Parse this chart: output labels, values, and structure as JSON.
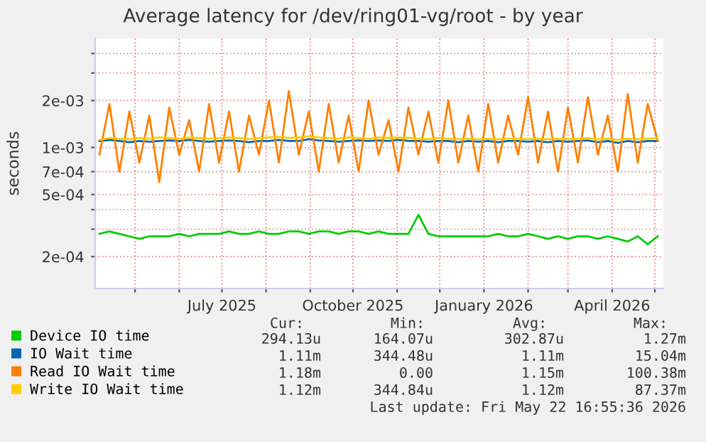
{
  "chart_data": {
    "type": "line",
    "title": "Average latency for /dev/ring01-vg/root - by year",
    "ylabel": "seconds",
    "log": "y",
    "grid": true,
    "legend": "bottom left",
    "x": [
      "2025-04-06",
      "2025-04-13",
      "2025-04-20",
      "2025-04-27",
      "2025-05-04",
      "2025-05-11",
      "2025-05-18",
      "2025-05-25",
      "2025-06-01",
      "2025-06-08",
      "2025-06-15",
      "2025-06-22",
      "2025-06-29",
      "2025-07-06",
      "2025-07-13",
      "2025-07-20",
      "2025-07-27",
      "2025-08-03",
      "2025-08-10",
      "2025-08-17",
      "2025-08-24",
      "2025-08-31",
      "2025-09-07",
      "2025-09-14",
      "2025-09-21",
      "2025-09-28",
      "2025-10-05",
      "2025-10-12",
      "2025-10-19",
      "2025-10-26",
      "2025-11-02",
      "2025-11-09",
      "2025-11-16",
      "2025-11-23",
      "2025-11-30",
      "2025-12-07",
      "2025-12-14",
      "2025-12-21",
      "2025-12-28",
      "2026-01-04",
      "2026-01-11",
      "2026-01-18",
      "2026-01-25",
      "2026-02-01",
      "2026-02-08",
      "2026-02-15",
      "2026-02-22",
      "2026-03-01",
      "2026-03-08",
      "2026-03-15",
      "2026-03-22",
      "2026-03-29",
      "2026-04-05",
      "2026-04-12",
      "2026-04-19",
      "2026-04-26",
      "2026-05-03"
    ],
    "series": [
      {
        "name": "Device IO time",
        "color": "#00cc00",
        "values": [
          0.00028,
          0.00029,
          0.00028,
          0.00027,
          0.00026,
          0.00027,
          0.00027,
          0.00027,
          0.00028,
          0.00027,
          0.00028,
          0.00028,
          0.00028,
          0.00029,
          0.00028,
          0.00028,
          0.00029,
          0.00028,
          0.00028,
          0.00029,
          0.00029,
          0.00028,
          0.00029,
          0.00029,
          0.00028,
          0.00029,
          0.00029,
          0.00028,
          0.00029,
          0.00028,
          0.00028,
          0.00028,
          0.00037,
          0.00028,
          0.00027,
          0.00027,
          0.00027,
          0.00027,
          0.00027,
          0.00027,
          0.00028,
          0.00027,
          0.00027,
          0.00028,
          0.00027,
          0.00026,
          0.00027,
          0.00026,
          0.00027,
          0.00027,
          0.00026,
          0.00027,
          0.00026,
          0.00025,
          0.00027,
          0.00024,
          0.00027
        ]
      },
      {
        "name": "IO Wait time",
        "color": "#0066b3",
        "values": [
          0.0011,
          0.00112,
          0.0011,
          0.00108,
          0.0011,
          0.00109,
          0.0011,
          0.00111,
          0.0011,
          0.00112,
          0.0011,
          0.00109,
          0.0011,
          0.00111,
          0.0011,
          0.00108,
          0.0011,
          0.0011,
          0.00112,
          0.0011,
          0.0011,
          0.00113,
          0.00111,
          0.0011,
          0.00109,
          0.0011,
          0.00111,
          0.0011,
          0.00111,
          0.0011,
          0.00112,
          0.0011,
          0.0011,
          0.00109,
          0.0011,
          0.0011,
          0.00108,
          0.0011,
          0.00109,
          0.0011,
          0.00108,
          0.0011,
          0.0011,
          0.00109,
          0.0011,
          0.00108,
          0.0011,
          0.00109,
          0.0011,
          0.00111,
          0.00108,
          0.0011,
          0.00107,
          0.0011,
          0.00108,
          0.0011,
          0.0011
        ]
      },
      {
        "name": "Read IO Wait time",
        "color": "#ff8000",
        "values": [
          0.0009,
          0.0019,
          0.0007,
          0.0017,
          0.0008,
          0.0016,
          0.0006,
          0.0018,
          0.0009,
          0.0015,
          0.0007,
          0.0019,
          0.0008,
          0.0017,
          0.0007,
          0.0016,
          0.0009,
          0.002,
          0.0008,
          0.0023,
          0.0009,
          0.0017,
          0.0007,
          0.0019,
          0.0008,
          0.0016,
          0.0007,
          0.002,
          0.0009,
          0.0015,
          0.0007,
          0.0018,
          0.0009,
          0.0017,
          0.0008,
          0.002,
          0.0008,
          0.0016,
          0.0007,
          0.0019,
          0.0008,
          0.0016,
          0.0009,
          0.0021,
          0.0008,
          0.0017,
          0.0007,
          0.0018,
          0.0008,
          0.0021,
          0.0009,
          0.0016,
          0.0007,
          0.0022,
          0.0008,
          0.0019,
          0.0011
        ]
      },
      {
        "name": "Write IO Wait time",
        "color": "#ffcc00",
        "values": [
          0.00112,
          0.00115,
          0.00114,
          0.00113,
          0.00115,
          0.00114,
          0.00116,
          0.00115,
          0.00114,
          0.00116,
          0.00115,
          0.00114,
          0.00115,
          0.00116,
          0.00115,
          0.00113,
          0.00115,
          0.00116,
          0.00117,
          0.00115,
          0.00116,
          0.00118,
          0.00116,
          0.00115,
          0.00114,
          0.00116,
          0.00115,
          0.00114,
          0.00116,
          0.00115,
          0.00116,
          0.00115,
          0.00114,
          0.00113,
          0.00115,
          0.00114,
          0.00113,
          0.00114,
          0.00113,
          0.00114,
          0.00113,
          0.00114,
          0.00114,
          0.00113,
          0.00114,
          0.00113,
          0.00114,
          0.00113,
          0.00114,
          0.00115,
          0.00113,
          0.00114,
          0.00112,
          0.00114,
          0.00113,
          0.00114,
          0.00115
        ]
      }
    ],
    "xlim": [
      "2025-04-03",
      "2026-05-07"
    ],
    "xticks": [
      {
        "value": "2025-05-01",
        "label": null
      },
      {
        "value": "2025-06-01",
        "label": null
      },
      {
        "value": "2025-07-01",
        "label": "July 2025"
      },
      {
        "value": "2025-08-01",
        "label": null
      },
      {
        "value": "2025-09-01",
        "label": null
      },
      {
        "value": "2025-10-01",
        "label": "October 2025"
      },
      {
        "value": "2025-11-01",
        "label": null
      },
      {
        "value": "2025-12-01",
        "label": null
      },
      {
        "value": "2026-01-01",
        "label": "January 2026"
      },
      {
        "value": "2026-02-01",
        "label": null
      },
      {
        "value": "2026-03-01",
        "label": null
      },
      {
        "value": "2026-04-01",
        "label": "April 2026"
      },
      {
        "value": "2026-05-01",
        "label": null
      }
    ],
    "ylim": [
      0.000125,
      0.005
    ],
    "yticks": [
      {
        "value": 0.0002,
        "label": "2e-04"
      },
      {
        "value": 0.0003,
        "label": null
      },
      {
        "value": 0.0004,
        "label": null
      },
      {
        "value": 0.0005,
        "label": "5e-04"
      },
      {
        "value": 0.0007,
        "label": "7e-04"
      },
      {
        "value": 0.001,
        "label": "1e-03"
      },
      {
        "value": 0.002,
        "label": "2e-03"
      },
      {
        "value": 0.003,
        "label": null
      },
      {
        "value": 0.004,
        "label": null
      }
    ],
    "annotations": [
      "Cur:",
      "Min:",
      "Avg:",
      "Max:",
      "294.13u",
      "164.07u",
      "302.87u",
      "1.27m",
      "1.11m",
      "344.48u",
      "1.11m",
      "15.04m",
      "1.18m",
      "0.00",
      "1.15m",
      "100.38m",
      "1.12m",
      "344.84u",
      "1.12m",
      "87.37m",
      "Last update: Fri May 22 16:55:36 2026"
    ]
  }
}
